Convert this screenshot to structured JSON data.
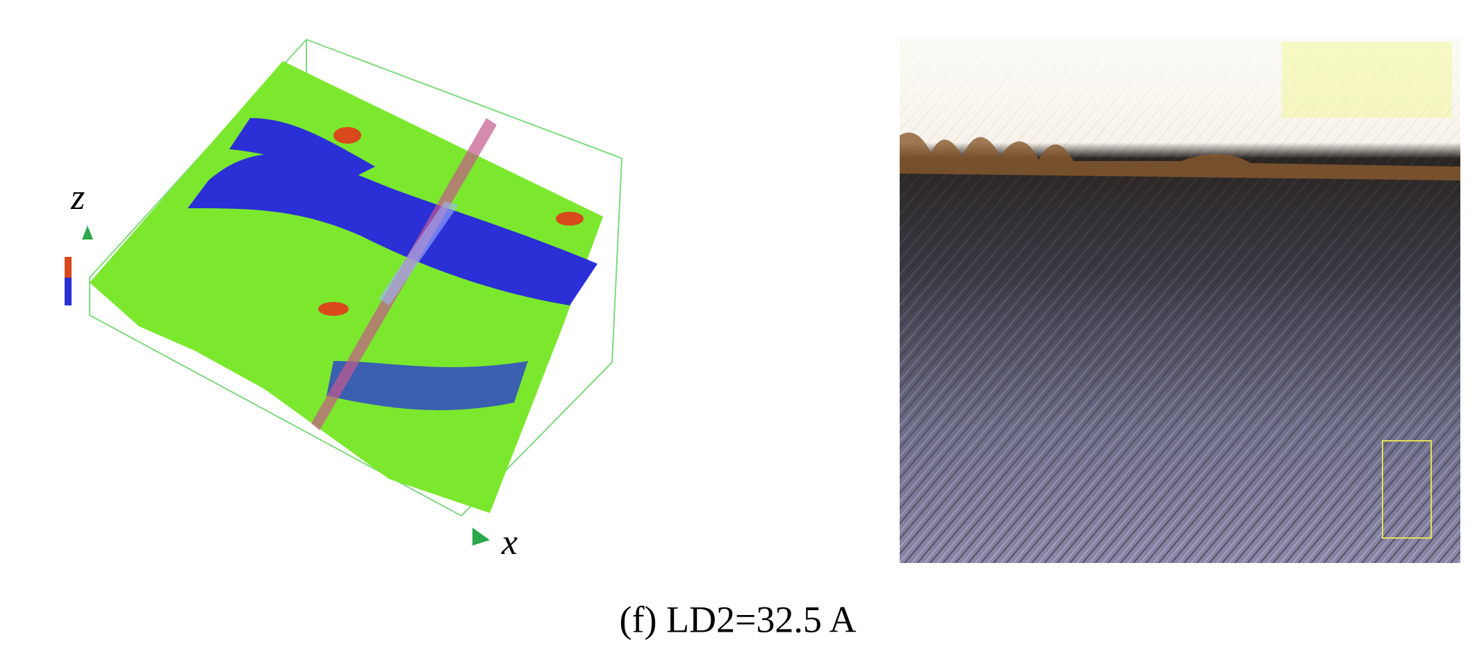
{
  "figure": {
    "left_panel": {
      "axis_z": "z",
      "axis_x": "x"
    },
    "caption": "(f) LD2=32.5 A"
  }
}
